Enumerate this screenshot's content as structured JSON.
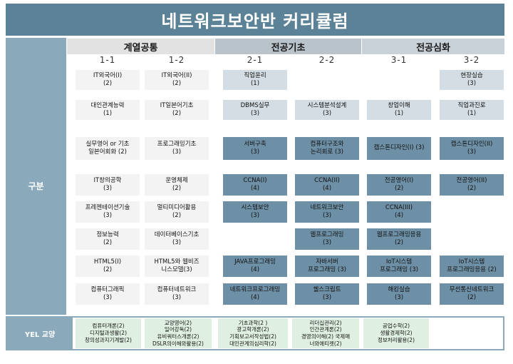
{
  "title": "네트워크보안반 커리큘럼",
  "side_label": "구분",
  "groups": [
    "계열공통",
    "전공기초",
    "전공심화"
  ],
  "semesters": [
    "1-1",
    "1-2",
    "2-1",
    "2-2",
    "3-1",
    "3-2"
  ],
  "courses": [
    {
      "col": 0,
      "row": 0,
      "text": "IT외국어(I)\n(2)"
    },
    {
      "col": 1,
      "row": 0,
      "text": "IT외국어(II)\n(2)"
    },
    {
      "col": 2,
      "row": 0,
      "text": "직업윤리\n(1)"
    },
    {
      "col": 5,
      "row": 0,
      "text": "현장실습\n(3)"
    },
    {
      "col": 0,
      "row": 1,
      "text": "대인관계능력\n(1)"
    },
    {
      "col": 1,
      "row": 1,
      "text": "IT일본어기초\n(2)"
    },
    {
      "col": 2,
      "row": 1,
      "text": "DBMS실무\n(3)"
    },
    {
      "col": 3,
      "row": 1,
      "text": "시스템분석설계\n(3)"
    },
    {
      "col": 4,
      "row": 1,
      "text": "창업이해\n(1)"
    },
    {
      "col": 5,
      "row": 1,
      "text": "직업과진로\n(1)"
    },
    {
      "col": 0,
      "row": 2,
      "text": "실무영어 or 기초\n일본어회화 (2)"
    },
    {
      "col": 1,
      "row": 2,
      "text": "프로그래밍기초\n(3)"
    },
    {
      "col": 2,
      "row": 2,
      "text": "서버구축\n(3)"
    },
    {
      "col": 3,
      "row": 2,
      "text": "컴퓨터구조와\n논리회로 (3)"
    },
    {
      "col": 4,
      "row": 2,
      "text": "캡스톤디자인(I) (3)"
    },
    {
      "col": 5,
      "row": 2,
      "text": "캡스톤디자인(II)\n(3)"
    },
    {
      "col": 0,
      "row": 3,
      "text": "IT창의공학\n(3)"
    },
    {
      "col": 1,
      "row": 3,
      "text": "운영체제\n(2)"
    },
    {
      "col": 2,
      "row": 3,
      "text": "CCNA(I)\n(4)"
    },
    {
      "col": 3,
      "row": 3,
      "text": "CCNA(II)\n(4)"
    },
    {
      "col": 4,
      "row": 3,
      "text": "전공영어(I)\n(2)"
    },
    {
      "col": 5,
      "row": 3,
      "text": "전공영어(II)\n(2)"
    },
    {
      "col": 0,
      "row": 4,
      "text": "프레젠테이션기술\n(3)"
    },
    {
      "col": 1,
      "row": 4,
      "text": "멀티미디어활용\n(2)"
    },
    {
      "col": 2,
      "row": 4,
      "text": "시스템보안\n(3)"
    },
    {
      "col": 3,
      "row": 4,
      "text": "네트워크보안\n(3)"
    },
    {
      "col": 4,
      "row": 4,
      "text": "CCNA(III)\n(4)"
    },
    {
      "col": 0,
      "row": 5,
      "text": "정보능력\n(2)"
    },
    {
      "col": 1,
      "row": 5,
      "text": "데이터베이스기초\n(3)"
    },
    {
      "col": 3,
      "row": 5,
      "text": "웹프로그래밍\n(3)"
    },
    {
      "col": 4,
      "row": 5,
      "text": "웹프로그래밍응용\n(2)"
    },
    {
      "col": 0,
      "row": 6,
      "text": "HTML5(I)\n(2)"
    },
    {
      "col": 1,
      "row": 6,
      "text": "HTML5와 웹비즈\n니스모델(3)"
    },
    {
      "col": 2,
      "row": 6,
      "text": "JAVA프로그래밍\n(4)"
    },
    {
      "col": 3,
      "row": 6,
      "text": "자바서버\n프로그래밍 (3)"
    },
    {
      "col": 4,
      "row": 6,
      "text": "IoT시스템\n프로그래밍 (3)"
    },
    {
      "col": 5,
      "row": 6,
      "text": "IoT시스템\n프로그래밍응용 (2)"
    },
    {
      "col": 0,
      "row": 7,
      "text": "컴퓨터그래픽\n(3)"
    },
    {
      "col": 1,
      "row": 7,
      "text": "컴퓨터네트워크\n(3)"
    },
    {
      "col": 2,
      "row": 7,
      "text": "네트워크프로그래밍\n(4)"
    },
    {
      "col": 3,
      "row": 7,
      "text": "쉘스크립트\n(3)"
    },
    {
      "col": 4,
      "row": 7,
      "text": "해킹실습\n(3)"
    },
    {
      "col": 5,
      "row": 7,
      "text": "무선통신네트워크\n(2)"
    }
  ],
  "yel_label": "YEL 교양",
  "yel": [
    "컴퓨터개론(2)\n디지털과생활(2)\n창의성과지기계발(2)",
    "교양영어(2)\n일어강독(2)\n유비쿼터스개론(2)\nDSLR의이해와활용(2)",
    "기초과학(2 )\n광고학개론(2)\n기획보고서작성법(2)\n대인관계의심리학(2)",
    "리더십관리(2)\n인간관계론(2)\n경영의이해(2) 국제매\n너와에티켓(2)",
    "공업수학(2)\n생활경제학(2)\n정보처리활용(2)",
    ""
  ],
  "colors": {
    "header": "#5b8296",
    "band": "#8aa9ba",
    "highlight": "#6e90a6",
    "yel_cell": "#dff0e2"
  }
}
